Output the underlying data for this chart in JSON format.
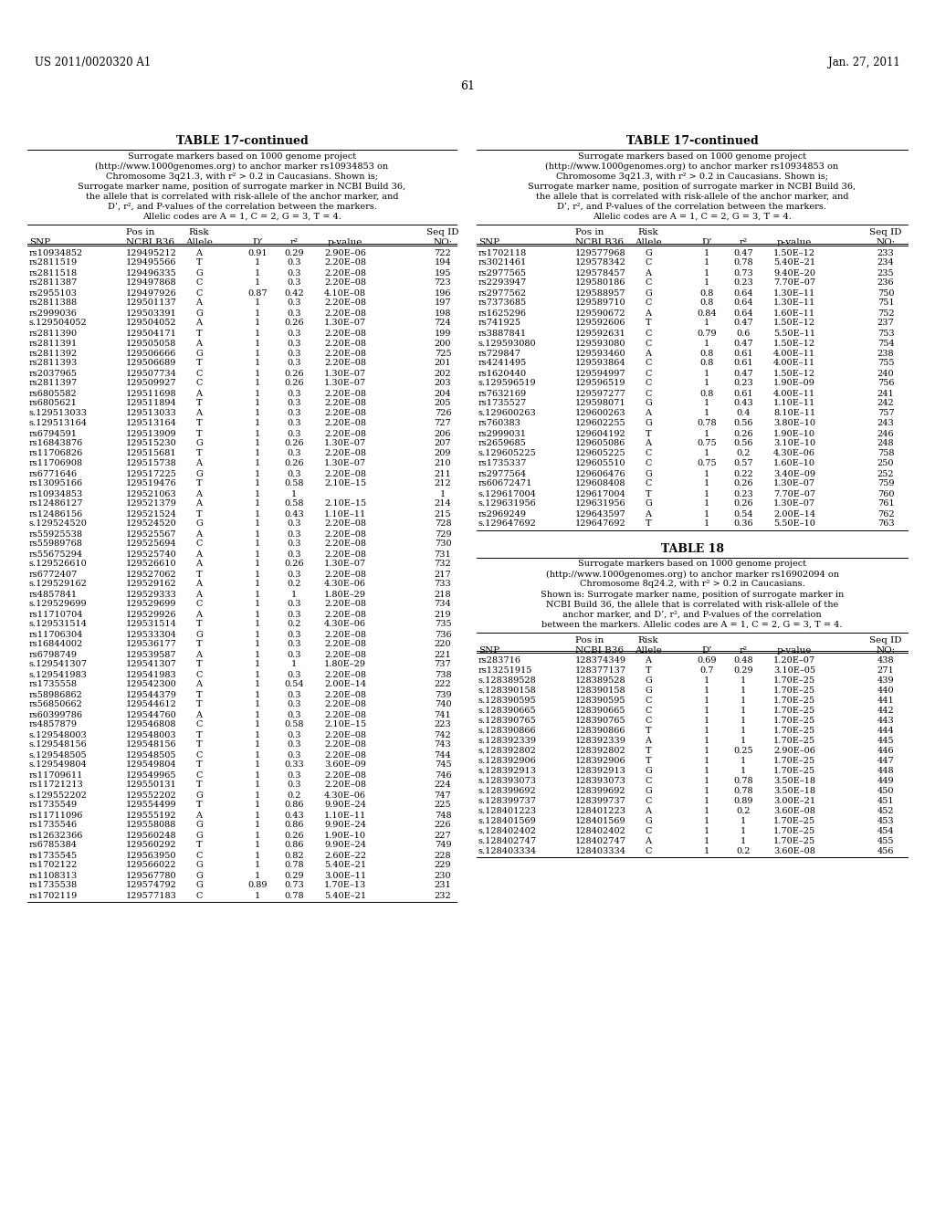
{
  "header_left": "US 2011/0020320 A1",
  "header_right": "Jan. 27, 2011",
  "page_number": "61",
  "table_title": "TABLE 17-continued",
  "table_note_lines": [
    "Surrogate markers based on 1000 genome project",
    "(http://www.1000genomes.org) to anchor marker rs10934853 on",
    "Chromosome 3q21.3, with r² > 0.2 in Caucasians. Shown is;",
    "Surrogate marker name, position of surrogate marker in NCBI Build 36,",
    "the allele that is correlated with risk-allele of the anchor marker, and",
    "D’, r², and P-values of the correlation between the markers.",
    "Allelic codes are A = 1, C = 2, G = 3, T = 4."
  ],
  "col_headers_line1": [
    "",
    "Pos in",
    "Risk",
    "",
    "",
    "",
    "Seq ID"
  ],
  "col_headers_line2": [
    "SNP",
    "NCBI B36",
    "Allele",
    "D’",
    "r²",
    "p-value",
    "NO:"
  ],
  "left_data": [
    [
      "rs10934852",
      "129495212",
      "A",
      "0.91",
      "0.29",
      "2.90E–06",
      "722"
    ],
    [
      "rs2811519",
      "129495566",
      "T",
      "1",
      "0.3",
      "2.20E–08",
      "194"
    ],
    [
      "rs2811518",
      "129496335",
      "G",
      "1",
      "0.3",
      "2.20E–08",
      "195"
    ],
    [
      "rs2811387",
      "129497868",
      "C",
      "1",
      "0.3",
      "2.20E–08",
      "723"
    ],
    [
      "rs2955103",
      "129497926",
      "C",
      "0.87",
      "0.42",
      "4.10E–08",
      "196"
    ],
    [
      "rs2811388",
      "129501137",
      "A",
      "1",
      "0.3",
      "2.20E–08",
      "197"
    ],
    [
      "rs2999036",
      "129503391",
      "G",
      "1",
      "0.3",
      "2.20E–08",
      "198"
    ],
    [
      "s.129504052",
      "129504052",
      "A",
      "1",
      "0.26",
      "1.30E–07",
      "724"
    ],
    [
      "rs2811390",
      "129504171",
      "T",
      "1",
      "0.3",
      "2.20E–08",
      "199"
    ],
    [
      "rs2811391",
      "129505058",
      "A",
      "1",
      "0.3",
      "2.20E–08",
      "200"
    ],
    [
      "rs2811392",
      "129506666",
      "G",
      "1",
      "0.3",
      "2.20E–08",
      "725"
    ],
    [
      "rs2811393",
      "129506689",
      "T",
      "1",
      "0.3",
      "2.20E–08",
      "201"
    ],
    [
      "rs2037965",
      "129507734",
      "C",
      "1",
      "0.26",
      "1.30E–07",
      "202"
    ],
    [
      "rs2811397",
      "129509927",
      "C",
      "1",
      "0.26",
      "1.30E–07",
      "203"
    ],
    [
      "rs6805582",
      "129511698",
      "A",
      "1",
      "0.3",
      "2.20E–08",
      "204"
    ],
    [
      "rs6805621",
      "129511894",
      "T",
      "1",
      "0.3",
      "2.20E–08",
      "205"
    ],
    [
      "s.129513033",
      "129513033",
      "A",
      "1",
      "0.3",
      "2.20E–08",
      "726"
    ],
    [
      "s.129513164",
      "129513164",
      "T",
      "1",
      "0.3",
      "2.20E–08",
      "727"
    ],
    [
      "rs6794591",
      "129513909",
      "T",
      "1",
      "0.3",
      "2.20E–08",
      "206"
    ],
    [
      "rs16843876",
      "129515230",
      "G",
      "1",
      "0.26",
      "1.30E–07",
      "207"
    ],
    [
      "rs11706826",
      "129515681",
      "T",
      "1",
      "0.3",
      "2.20E–08",
      "209"
    ],
    [
      "rs11706908",
      "129515738",
      "A",
      "1",
      "0.26",
      "1.30E–07",
      "210"
    ],
    [
      "rs6771646",
      "129517225",
      "G",
      "1",
      "0.3",
      "2.20E–08",
      "211"
    ],
    [
      "rs13095166",
      "129519476",
      "T",
      "1",
      "0.58",
      "2.10E–15",
      "212"
    ],
    [
      "rs10934853",
      "129521063",
      "A",
      "1",
      "1",
      "",
      "1"
    ],
    [
      "rs12486127",
      "129521379",
      "A",
      "1",
      "0.58",
      "2.10E–15",
      "214"
    ],
    [
      "rs12486156",
      "129521524",
      "T",
      "1",
      "0.43",
      "1.10E–11",
      "215"
    ],
    [
      "s.129524520",
      "129524520",
      "G",
      "1",
      "0.3",
      "2.20E–08",
      "728"
    ],
    [
      "rs55925538",
      "129525567",
      "A",
      "1",
      "0.3",
      "2.20E–08",
      "729"
    ],
    [
      "rs55989768",
      "129525694",
      "C",
      "1",
      "0.3",
      "2.20E–08",
      "730"
    ],
    [
      "rs55675294",
      "129525740",
      "A",
      "1",
      "0.3",
      "2.20E–08",
      "731"
    ],
    [
      "s.129526610",
      "129526610",
      "A",
      "1",
      "0.26",
      "1.30E–07",
      "732"
    ],
    [
      "rs6772407",
      "129527062",
      "T",
      "1",
      "0.3",
      "2.20E–08",
      "217"
    ],
    [
      "s.129529162",
      "129529162",
      "A",
      "1",
      "0.2",
      "4.30E–06",
      "733"
    ],
    [
      "rs4857841",
      "129529333",
      "A",
      "1",
      "1",
      "1.80E–29",
      "218"
    ],
    [
      "s.129529699",
      "129529699",
      "C",
      "1",
      "0.3",
      "2.20E–08",
      "734"
    ],
    [
      "rs11710704",
      "129529926",
      "A",
      "1",
      "0.3",
      "2.20E–08",
      "219"
    ],
    [
      "s.129531514",
      "129531514",
      "T",
      "1",
      "0.2",
      "4.30E–06",
      "735"
    ],
    [
      "rs11706304",
      "129533304",
      "G",
      "1",
      "0.3",
      "2.20E–08",
      "736"
    ],
    [
      "rs16844002",
      "129536177",
      "T",
      "1",
      "0.3",
      "2.20E–08",
      "220"
    ],
    [
      "rs6798749",
      "129539587",
      "A",
      "1",
      "0.3",
      "2.20E–08",
      "221"
    ],
    [
      "s.129541307",
      "129541307",
      "T",
      "1",
      "1",
      "1.80E–29",
      "737"
    ],
    [
      "s.129541983",
      "129541983",
      "C",
      "1",
      "0.3",
      "2.20E–08",
      "738"
    ],
    [
      "rs1735558",
      "129542300",
      "A",
      "1",
      "0.54",
      "2.00E–14",
      "222"
    ],
    [
      "rs58986862",
      "129544379",
      "T",
      "1",
      "0.3",
      "2.20E–08",
      "739"
    ],
    [
      "rs56850662",
      "129544612",
      "T",
      "1",
      "0.3",
      "2.20E–08",
      "740"
    ],
    [
      "rs60399786",
      "129544760",
      "A",
      "1",
      "0.3",
      "2.20E–08",
      "741"
    ],
    [
      "rs4857879",
      "129546808",
      "C",
      "1",
      "0.58",
      "2.10E–15",
      "223"
    ],
    [
      "s.129548003",
      "129548003",
      "T",
      "1",
      "0.3",
      "2.20E–08",
      "742"
    ],
    [
      "s.129548156",
      "129548156",
      "T",
      "1",
      "0.3",
      "2.20E–08",
      "743"
    ],
    [
      "s.129548505",
      "129548505",
      "C",
      "1",
      "0.3",
      "2.20E–08",
      "744"
    ],
    [
      "s.129549804",
      "129549804",
      "T",
      "1",
      "0.33",
      "3.60E–09",
      "745"
    ],
    [
      "rs11709611",
      "129549965",
      "C",
      "1",
      "0.3",
      "2.20E–08",
      "746"
    ],
    [
      "rs11721213",
      "129550131",
      "T",
      "1",
      "0.3",
      "2.20E–08",
      "224"
    ],
    [
      "s.129552202",
      "129552202",
      "G",
      "1",
      "0.2",
      "4.30E–06",
      "747"
    ],
    [
      "rs1735549",
      "129554499",
      "T",
      "1",
      "0.86",
      "9.90E–24",
      "225"
    ],
    [
      "rs11711096",
      "129555192",
      "A",
      "1",
      "0.43",
      "1.10E–11",
      "748"
    ],
    [
      "rs1735546",
      "129558088",
      "G",
      "1",
      "0.86",
      "9.90E–24",
      "226"
    ],
    [
      "rs12632366",
      "129560248",
      "G",
      "1",
      "0.26",
      "1.90E–10",
      "227"
    ],
    [
      "rs6785384",
      "129560292",
      "T",
      "1",
      "0.86",
      "9.90E–24",
      "749"
    ],
    [
      "rs1735545",
      "129563950",
      "C",
      "1",
      "0.82",
      "2.60E–22",
      "228"
    ],
    [
      "rs1702122",
      "129566022",
      "G",
      "1",
      "0.78",
      "5.40E–21",
      "229"
    ],
    [
      "rs1108313",
      "129567780",
      "G",
      "1",
      "0.29",
      "3.00E–11",
      "230"
    ],
    [
      "rs1735538",
      "129574792",
      "G",
      "0.89",
      "0.73",
      "1.70E–13",
      "231"
    ],
    [
      "rs1702119",
      "129577183",
      "C",
      "1",
      "0.78",
      "5.40E–21",
      "232"
    ]
  ],
  "right_data": [
    [
      "rs1702118",
      "129577968",
      "G",
      "1",
      "0.47",
      "1.50E–12",
      "233"
    ],
    [
      "rs3021461",
      "129578342",
      "C",
      "1",
      "0.78",
      "5.40E–21",
      "234"
    ],
    [
      "rs2977565",
      "129578457",
      "A",
      "1",
      "0.73",
      "9.40E–20",
      "235"
    ],
    [
      "rs2293947",
      "129580186",
      "C",
      "1",
      "0.23",
      "7.70E–07",
      "236"
    ],
    [
      "rs2977562",
      "129588957",
      "G",
      "0.8",
      "0.64",
      "1.30E–11",
      "750"
    ],
    [
      "rs7373685",
      "129589710",
      "C",
      "0.8",
      "0.64",
      "1.30E–11",
      "751"
    ],
    [
      "rs1625296",
      "129590672",
      "A",
      "0.84",
      "0.64",
      "1.60E–11",
      "752"
    ],
    [
      "rs741925",
      "129592606",
      "T",
      "1",
      "0.47",
      "1.50E–12",
      "237"
    ],
    [
      "rs3887841",
      "129592631",
      "C",
      "0.79",
      "0.6",
      "5.50E–11",
      "753"
    ],
    [
      "s.129593080",
      "129593080",
      "C",
      "1",
      "0.47",
      "1.50E–12",
      "754"
    ],
    [
      "rs729847",
      "129593460",
      "A",
      "0.8",
      "0.61",
      "4.00E–11",
      "238"
    ],
    [
      "rs4241495",
      "129593864",
      "C",
      "0.8",
      "0.61",
      "4.00E–11",
      "755"
    ],
    [
      "rs1620440",
      "129594997",
      "C",
      "1",
      "0.47",
      "1.50E–12",
      "240"
    ],
    [
      "s.129596519",
      "129596519",
      "C",
      "1",
      "0.23",
      "1.90E–09",
      "756"
    ],
    [
      "rs7632169",
      "129597277",
      "C",
      "0.8",
      "0.61",
      "4.00E–11",
      "241"
    ],
    [
      "rs1735527",
      "129598071",
      "G",
      "1",
      "0.43",
      "1.10E–11",
      "242"
    ],
    [
      "s.129600263",
      "129600263",
      "A",
      "1",
      "0.4",
      "8.10E–11",
      "757"
    ],
    [
      "rs760383",
      "129602255",
      "G",
      "0.78",
      "0.56",
      "3.80E–10",
      "243"
    ],
    [
      "rs2999031",
      "129604192",
      "T",
      "1",
      "0.26",
      "1.90E–10",
      "246"
    ],
    [
      "rs2659685",
      "129605086",
      "A",
      "0.75",
      "0.56",
      "3.10E–10",
      "248"
    ],
    [
      "s.129605225",
      "129605225",
      "C",
      "1",
      "0.2",
      "4.30E–06",
      "758"
    ],
    [
      "rs1735337",
      "129605510",
      "C",
      "0.75",
      "0.57",
      "1.60E–10",
      "250"
    ],
    [
      "rs2977564",
      "129606476",
      "G",
      "1",
      "0.22",
      "3.40E–09",
      "252"
    ],
    [
      "rs60672471",
      "129608408",
      "C",
      "1",
      "0.26",
      "1.30E–07",
      "759"
    ],
    [
      "s.129617004",
      "129617004",
      "T",
      "1",
      "0.23",
      "7.70E–07",
      "760"
    ],
    [
      "s.129631956",
      "129631956",
      "G",
      "1",
      "0.26",
      "1.30E–07",
      "761"
    ],
    [
      "rs2969249",
      "129643597",
      "A",
      "1",
      "0.54",
      "2.00E–14",
      "762"
    ],
    [
      "s.129647692",
      "129647692",
      "T",
      "1",
      "0.36",
      "5.50E–10",
      "763"
    ]
  ],
  "table18_title": "TABLE 18",
  "table18_note_lines": [
    "Surrogate markers based on 1000 genome project",
    "(http://www.1000genomes.org) to anchor marker rs16902094 on",
    "Chromosome 8q24.2, with r² > 0.2 in Caucasians.",
    "Shown is: Surrogate marker name, position of surrogate marker in",
    "NCBI Build 36, the allele that is correlated with risk-allele of the",
    "anchor marker, and D’, r², and P-values of the correlation",
    "between the markers. Allelic codes are A = 1, C = 2, G = 3, T = 4."
  ],
  "table18_data": [
    [
      "rs283716",
      "128374349",
      "A",
      "0.69",
      "0.48",
      "1.20E–07",
      "438"
    ],
    [
      "rs13251915",
      "128377137",
      "T",
      "0.7",
      "0.29",
      "3.10E–05",
      "271"
    ],
    [
      "s.128389528",
      "128389528",
      "G",
      "1",
      "1",
      "1.70E–25",
      "439"
    ],
    [
      "s.128390158",
      "128390158",
      "G",
      "1",
      "1",
      "1.70E–25",
      "440"
    ],
    [
      "s.128390595",
      "128390595",
      "C",
      "1",
      "1",
      "1.70E–25",
      "441"
    ],
    [
      "s.128390665",
      "128390665",
      "C",
      "1",
      "1",
      "1.70E–25",
      "442"
    ],
    [
      "s.128390765",
      "128390765",
      "C",
      "1",
      "1",
      "1.70E–25",
      "443"
    ],
    [
      "s.128390866",
      "128390866",
      "T",
      "1",
      "1",
      "1.70E–25",
      "444"
    ],
    [
      "s.128392339",
      "128392339",
      "A",
      "1",
      "1",
      "1.70E–25",
      "445"
    ],
    [
      "s.128392802",
      "128392802",
      "T",
      "1",
      "0.25",
      "2.90E–06",
      "446"
    ],
    [
      "s.128392906",
      "128392906",
      "T",
      "1",
      "1",
      "1.70E–25",
      "447"
    ],
    [
      "s.128392913",
      "128392913",
      "G",
      "1",
      "1",
      "1.70E–25",
      "448"
    ],
    [
      "s.128393073",
      "128393073",
      "C",
      "1",
      "0.78",
      "3.50E–18",
      "449"
    ],
    [
      "s.128399692",
      "128399692",
      "G",
      "1",
      "0.78",
      "3.50E–18",
      "450"
    ],
    [
      "s.128399737",
      "128399737",
      "C",
      "1",
      "0.89",
      "3.00E–21",
      "451"
    ],
    [
      "s.128401223",
      "128401223",
      "A",
      "1",
      "0.2",
      "3.60E–08",
      "452"
    ],
    [
      "s.128401569",
      "128401569",
      "G",
      "1",
      "1",
      "1.70E–25",
      "453"
    ],
    [
      "s.128402402",
      "128402402",
      "C",
      "1",
      "1",
      "1.70E–25",
      "454"
    ],
    [
      "s.128402747",
      "128402747",
      "A",
      "1",
      "1",
      "1.70E–25",
      "455"
    ],
    [
      "s.128403334",
      "128403334",
      "C",
      "1",
      "0.2",
      "3.60E–08",
      "456"
    ]
  ]
}
